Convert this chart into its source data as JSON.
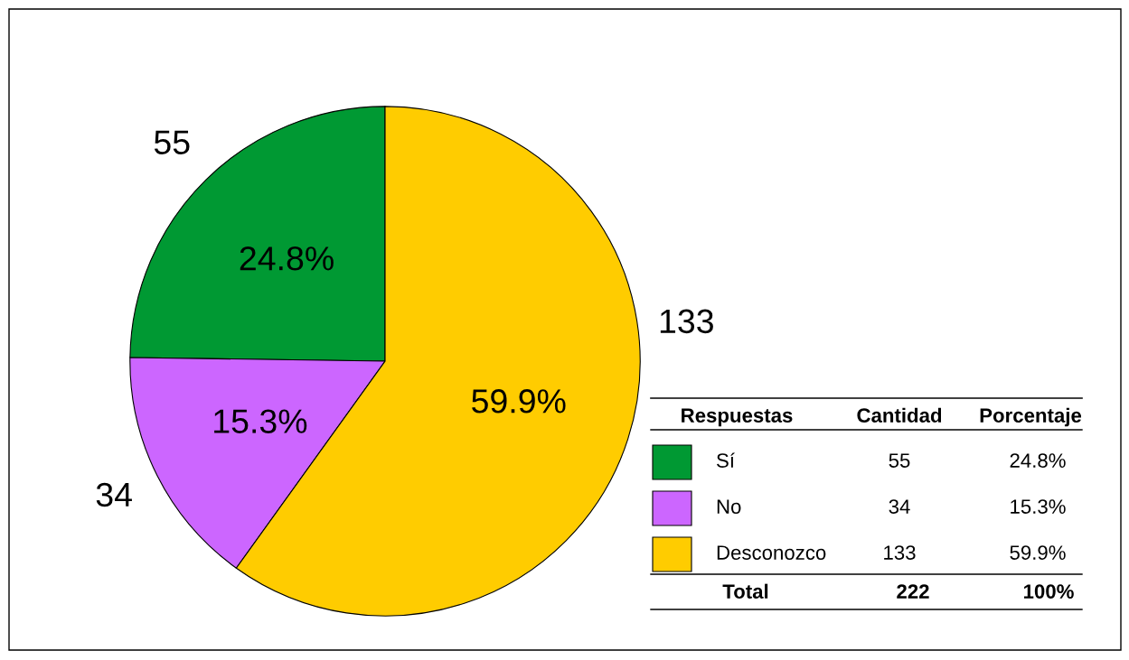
{
  "chart_data": {
    "type": "pie",
    "categories": [
      "Sí",
      "No",
      "Desconozco"
    ],
    "values": [
      55,
      34,
      133
    ],
    "colors": [
      "#009933",
      "#cc66ff",
      "#ffcc00"
    ],
    "data_labels": true,
    "legend": "bottom right",
    "annotations": [
      {
        "text": "24.8%",
        "x": "Sí"
      },
      {
        "text": "15.3%",
        "x": "No"
      },
      {
        "text": "59.9%",
        "x": "Desconozco"
      },
      "Respuestas",
      "Cantidad",
      "Porcentaje",
      "55",
      "34",
      "133",
      "Total",
      "222",
      "100%"
    ]
  }
}
